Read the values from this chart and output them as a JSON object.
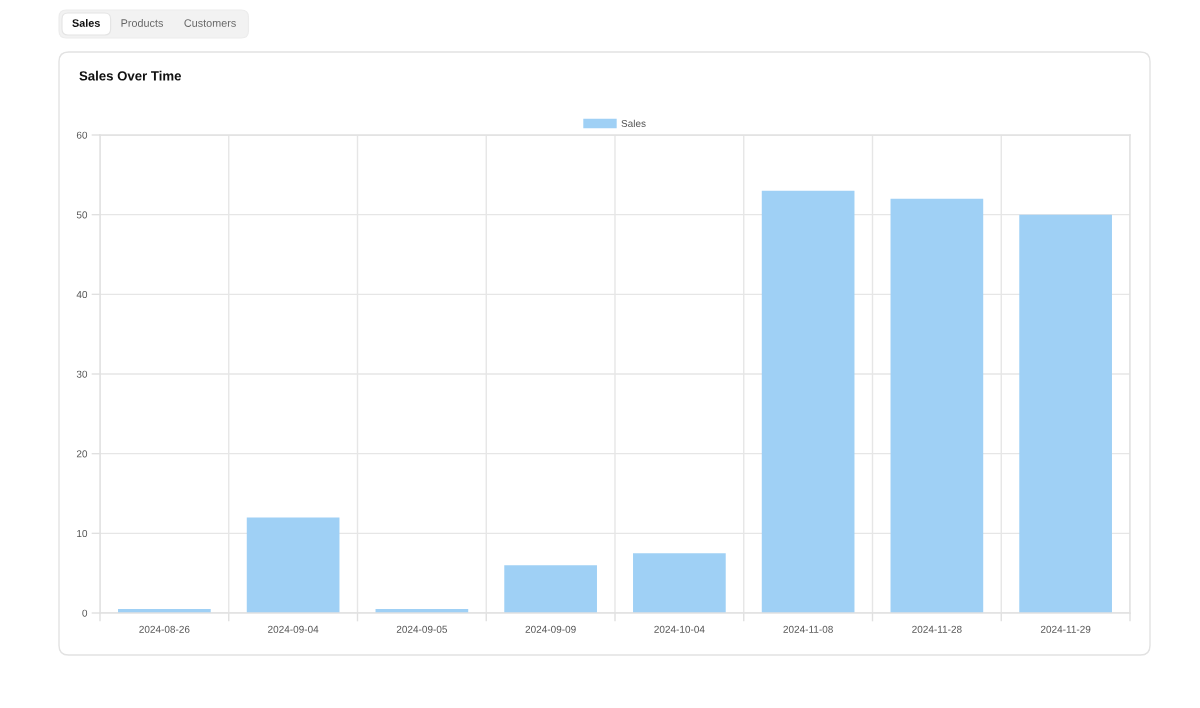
{
  "chart_data": {
    "type": "bar",
    "title": "Sales Over Time",
    "categories": [
      "2024-08-26",
      "2024-09-04",
      "2024-09-05",
      "2024-09-09",
      "2024-10-04",
      "2024-11-08",
      "2024-11-28",
      "2024-11-29"
    ],
    "series": [
      {
        "name": "Sales",
        "color": "#9fd0f5",
        "values": [
          0.5,
          12,
          0.5,
          6,
          7.5,
          53,
          52,
          50
        ]
      }
    ],
    "ylim": [
      0,
      60
    ],
    "yticks": [
      0,
      10,
      20,
      30,
      40,
      50,
      60
    ],
    "grid": true,
    "legend": "top",
    "annotations": [
      "Sales",
      "Products",
      "Customers"
    ]
  }
}
